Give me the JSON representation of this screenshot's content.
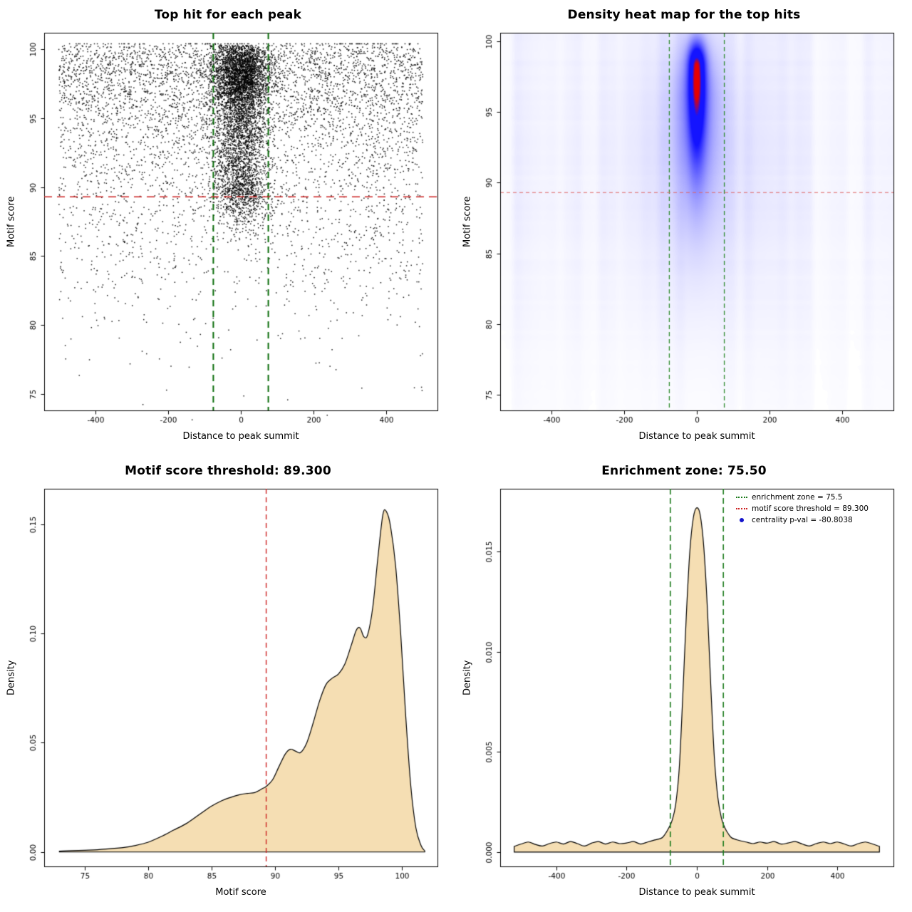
{
  "page": {
    "background": "#ffffff"
  },
  "chart_data": [
    {
      "type": "scatter",
      "title": "Top hit for each peak",
      "xlabel": "Distance to peak summit",
      "ylabel": "Motif score",
      "xlim": [
        -540,
        540
      ],
      "ylim": [
        73.8,
        101.2
      ],
      "xticks": [
        -400,
        -200,
        0,
        200,
        400
      ],
      "yticks": [
        75,
        80,
        85,
        90,
        95,
        100
      ],
      "point_color": "#000000",
      "marker_px": 1.5,
      "hline": {
        "y": 89.3,
        "color": "#cc2222",
        "dash": [
          11,
          7
        ],
        "width": 1.6
      },
      "vlines": {
        "x": [
          -75.5,
          75.5
        ],
        "color": "#0a6b0a",
        "dash": [
          9,
          6
        ],
        "width": 2
      },
      "points": {
        "seed": 11,
        "background": {
          "n": 5200,
          "x_min": -500,
          "x_max": 500
        },
        "cluster": {
          "n": 5200,
          "x_mean": 0,
          "x_sd": 38,
          "y_components": [
            {
              "w": 0.5,
              "mean": 98.2,
              "sd": 1.3
            },
            {
              "w": 0.33,
              "mean": 94.3,
              "sd": 2.3
            },
            {
              "w": 0.17,
              "mean": 89.8,
              "sd": 1.4
            }
          ]
        }
      }
    },
    {
      "type": "heatmap",
      "title": "Density heat map for the top hits",
      "xlabel": "Distance to peak summit",
      "ylabel": "Motif score",
      "xlim": [
        -540,
        540
      ],
      "ylim": [
        73.9,
        100.6
      ],
      "xticks": [
        -400,
        -200,
        0,
        200,
        400
      ],
      "yticks": [
        75,
        80,
        85,
        90,
        95,
        100
      ],
      "hline": {
        "y": 89.3,
        "color": "#e06666",
        "dash": [
          5,
          4
        ],
        "width": 1.1
      },
      "vlines": {
        "x": [
          -75.5,
          75.5
        ],
        "color": "#2e8b2e",
        "dash": [
          6,
          4
        ],
        "width": 1.3
      },
      "density": {
        "seed": 7,
        "max": 1.35,
        "background_amp": 0.05,
        "components": [
          {
            "amp": 1.0,
            "x0": 0,
            "xsd": 16,
            "y0": 98.2,
            "ysd_up": 1.15,
            "ysd_down": 4.0
          },
          {
            "amp": 0.32,
            "x0": 0,
            "xsd": 40,
            "y0": 96.0,
            "ysd_up": 2.6,
            "ysd_down": 5.5
          },
          {
            "amp": 0.08,
            "x0": 0,
            "xsd": 120,
            "y0": 92.5,
            "ysd_up": 6.0,
            "ysd_down": 7.0
          }
        ],
        "colors": {
          "low": "#ffffff",
          "mid": "#1414ff",
          "high": "#e60000"
        },
        "blue_at": 0.55,
        "red_from": 0.8,
        "red_full": 0.93
      }
    },
    {
      "type": "area",
      "title": "Motif score threshold: 89.300",
      "xlabel": "Motif score",
      "ylabel": "Density",
      "xlim": [
        71.8,
        102.8
      ],
      "ylim": [
        -0.0066,
        0.1662
      ],
      "xticks": [
        75,
        80,
        85,
        90,
        95,
        100
      ],
      "yticks": [
        0,
        0.05,
        0.1,
        0.15
      ],
      "ytick_labels": [
        "0.00",
        "0.05",
        "0.10",
        "0.15"
      ],
      "fill": "#f5deb3",
      "stroke": "#000000",
      "vlines": {
        "x": [
          89.3
        ],
        "color": "#cc2222",
        "dash": [
          7,
          5
        ],
        "width": 1.4
      },
      "curve": [
        [
          73,
          0.0004
        ],
        [
          74,
          0.0006
        ],
        [
          75,
          0.0008
        ],
        [
          76,
          0.001
        ],
        [
          77,
          0.0015
        ],
        [
          78,
          0.002
        ],
        [
          79,
          0.003
        ],
        [
          80,
          0.0045
        ],
        [
          81,
          0.007
        ],
        [
          82,
          0.01
        ],
        [
          83,
          0.013
        ],
        [
          84,
          0.017
        ],
        [
          85,
          0.021
        ],
        [
          85.8,
          0.0235
        ],
        [
          86.5,
          0.025
        ],
        [
          87.2,
          0.0262
        ],
        [
          87.8,
          0.0268
        ],
        [
          88.4,
          0.0272
        ],
        [
          89,
          0.029
        ],
        [
          89.3,
          0.03
        ],
        [
          89.8,
          0.033
        ],
        [
          90.3,
          0.039
        ],
        [
          90.8,
          0.0448
        ],
        [
          91.2,
          0.047
        ],
        [
          91.6,
          0.0462
        ],
        [
          92,
          0.0455
        ],
        [
          92.5,
          0.05
        ],
        [
          93,
          0.059
        ],
        [
          93.5,
          0.069
        ],
        [
          94,
          0.0765
        ],
        [
          94.5,
          0.0795
        ],
        [
          95,
          0.0815
        ],
        [
          95.5,
          0.086
        ],
        [
          96,
          0.0945
        ],
        [
          96.4,
          0.1015
        ],
        [
          96.7,
          0.1025
        ],
        [
          97,
          0.0985
        ],
        [
          97.3,
          0.0995
        ],
        [
          97.7,
          0.112
        ],
        [
          98.1,
          0.1345
        ],
        [
          98.5,
          0.1545
        ],
        [
          98.8,
          0.1555
        ],
        [
          99.1,
          0.149
        ],
        [
          99.5,
          0.131
        ],
        [
          99.9,
          0.1
        ],
        [
          100.3,
          0.062
        ],
        [
          100.7,
          0.03
        ],
        [
          101.1,
          0.011
        ],
        [
          101.5,
          0.003
        ],
        [
          101.8,
          0.0005
        ]
      ]
    },
    {
      "type": "area",
      "title": "Enrichment zone: 75.50",
      "xlabel": "Distance to peak summit",
      "ylabel": "Density",
      "xlim": [
        -560,
        560
      ],
      "ylim": [
        -0.00072,
        0.01815
      ],
      "xticks": [
        -400,
        -200,
        0,
        200,
        400
      ],
      "yticks": [
        0,
        0.005,
        0.01,
        0.015
      ],
      "ytick_labels": [
        "0.000",
        "0.005",
        "0.010",
        "0.015"
      ],
      "fill": "#f5deb3",
      "stroke": "#000000",
      "vlines": {
        "x": [
          -75.5,
          75.5
        ],
        "color": "#1a7a1a",
        "dash": [
          8,
          5
        ],
        "width": 1.6
      },
      "legend": {
        "items": [
          {
            "label": "enrichment zone = 75.5",
            "marker": "dotted-line",
            "color": "#1a7a1a"
          },
          {
            "label": "motif score threshold = 89.300",
            "marker": "dotted-line",
            "color": "#cc2222"
          },
          {
            "label": "centrality p-val = -80.8038",
            "marker": "dot",
            "color": "#1414cc"
          }
        ]
      },
      "curve": [
        [
          -520,
          0.00028
        ],
        [
          -500,
          0.0004
        ],
        [
          -480,
          0.0005
        ],
        [
          -460,
          0.00038
        ],
        [
          -440,
          0.0003
        ],
        [
          -420,
          0.00042
        ],
        [
          -400,
          0.0005
        ],
        [
          -380,
          0.0004
        ],
        [
          -360,
          0.00052
        ],
        [
          -340,
          0.00042
        ],
        [
          -320,
          0.0003
        ],
        [
          -300,
          0.00044
        ],
        [
          -280,
          0.00052
        ],
        [
          -260,
          0.0004
        ],
        [
          -240,
          0.0005
        ],
        [
          -220,
          0.00042
        ],
        [
          -200,
          0.00045
        ],
        [
          -180,
          0.00052
        ],
        [
          -160,
          0.0004
        ],
        [
          -140,
          0.0005
        ],
        [
          -120,
          0.0006
        ],
        [
          -100,
          0.0007
        ],
        [
          -90,
          0.0009
        ],
        [
          -80,
          0.0012
        ],
        [
          -70,
          0.0016
        ],
        [
          -60,
          0.0024
        ],
        [
          -50,
          0.0042
        ],
        [
          -40,
          0.0078
        ],
        [
          -30,
          0.0118
        ],
        [
          -20,
          0.015
        ],
        [
          -10,
          0.0167
        ],
        [
          0,
          0.0172
        ],
        [
          10,
          0.0168
        ],
        [
          20,
          0.0152
        ],
        [
          30,
          0.0122
        ],
        [
          40,
          0.0082
        ],
        [
          50,
          0.0047
        ],
        [
          60,
          0.0027
        ],
        [
          70,
          0.0017
        ],
        [
          80,
          0.0012
        ],
        [
          90,
          0.0009
        ],
        [
          100,
          0.0007
        ],
        [
          120,
          0.00058
        ],
        [
          140,
          0.0005
        ],
        [
          160,
          0.00042
        ],
        [
          180,
          0.0005
        ],
        [
          200,
          0.00044
        ],
        [
          220,
          0.00052
        ],
        [
          240,
          0.0004
        ],
        [
          260,
          0.00045
        ],
        [
          280,
          0.00052
        ],
        [
          300,
          0.0004
        ],
        [
          320,
          0.0003
        ],
        [
          340,
          0.00042
        ],
        [
          360,
          0.0005
        ],
        [
          380,
          0.00042
        ],
        [
          400,
          0.0005
        ],
        [
          420,
          0.0004
        ],
        [
          440,
          0.0003
        ],
        [
          460,
          0.00042
        ],
        [
          480,
          0.0005
        ],
        [
          500,
          0.0004
        ],
        [
          520,
          0.00028
        ]
      ]
    }
  ]
}
